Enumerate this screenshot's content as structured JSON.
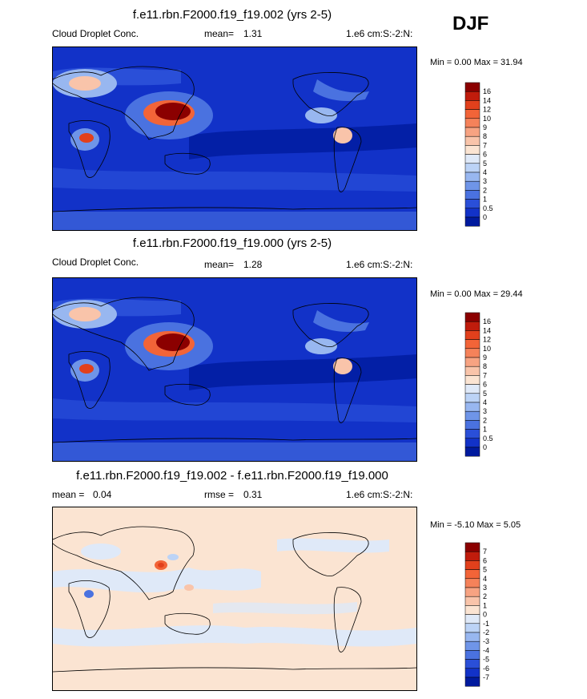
{
  "season": "DJF",
  "chart_data": [
    {
      "type": "heatmap",
      "title": "f.e11.rbn.F2000.f19_f19.002 (yrs 2-5)",
      "variable": "Cloud Droplet Conc.",
      "mean_label": "mean=",
      "mean": "1.31",
      "units": "1.e6 cm:S:-2:N:",
      "minmax": "Min =   0.00 Max =  31.94",
      "min": 0.0,
      "max": 31.94,
      "colorbar_levels": [
        "16",
        "14",
        "12",
        "10",
        "9",
        "8",
        "7",
        "6",
        "5",
        "4",
        "3",
        "2",
        "1",
        "0.5",
        "0"
      ],
      "colorbar_colors": [
        "#8b0000",
        "#c01c0c",
        "#e2401c",
        "#f26438",
        "#f5825a",
        "#f7a382",
        "#f9c4aa",
        "#fbe4d2",
        "#dfe9f8",
        "#bcd3f6",
        "#98b7f0",
        "#6f95e8",
        "#4a72e0",
        "#2a4fd8",
        "#1232c8",
        "#001a9e"
      ]
    },
    {
      "type": "heatmap",
      "title": "f.e11.rbn.F2000.f19_f19.000 (yrs 2-5)",
      "variable": "Cloud Droplet Conc.",
      "mean_label": "mean=",
      "mean": "1.28",
      "units": "1.e6 cm:S:-2:N:",
      "minmax": "Min =   0.00 Max =  29.44",
      "min": 0.0,
      "max": 29.44,
      "colorbar_levels": [
        "16",
        "14",
        "12",
        "10",
        "9",
        "8",
        "7",
        "6",
        "5",
        "4",
        "3",
        "2",
        "1",
        "0.5",
        "0"
      ],
      "colorbar_colors": [
        "#8b0000",
        "#c01c0c",
        "#e2401c",
        "#f26438",
        "#f5825a",
        "#f7a382",
        "#f9c4aa",
        "#fbe4d2",
        "#dfe9f8",
        "#bcd3f6",
        "#98b7f0",
        "#6f95e8",
        "#4a72e0",
        "#2a4fd8",
        "#1232c8",
        "#001a9e"
      ]
    },
    {
      "type": "heatmap",
      "title": "f.e11.rbn.F2000.f19_f19.002 - f.e11.rbn.F2000.f19_f19.000",
      "mean_label": "mean =",
      "mean": "0.04",
      "rmse_label": "rmse =",
      "rmse": "0.31",
      "units": "1.e6 cm:S:-2:N:",
      "minmax": "Min =  -5.10 Max =   5.05",
      "min": -5.1,
      "max": 5.05,
      "colorbar_levels": [
        "7",
        "6",
        "5",
        "4",
        "3",
        "2",
        "1",
        "0",
        "-1",
        "-2",
        "-3",
        "-4",
        "-5",
        "-6",
        "-7"
      ],
      "colorbar_colors": [
        "#8b0000",
        "#c01c0c",
        "#e2401c",
        "#f26438",
        "#f5825a",
        "#f7a382",
        "#f9c4aa",
        "#fbe4d2",
        "#dfe9f8",
        "#bcd3f6",
        "#98b7f0",
        "#6f95e8",
        "#4a72e0",
        "#2a4fd8",
        "#1232c8",
        "#001a9e"
      ]
    }
  ]
}
